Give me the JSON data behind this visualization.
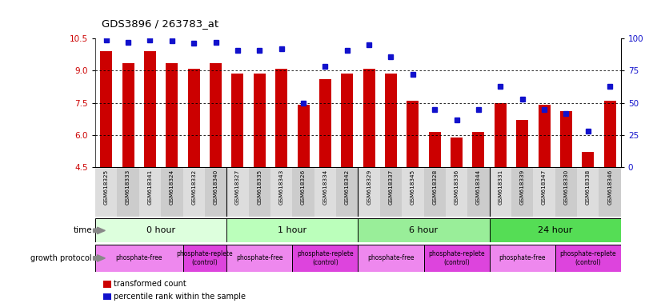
{
  "title": "GDS3896 / 263783_at",
  "samples": [
    "GSM618325",
    "GSM618333",
    "GSM618341",
    "GSM618324",
    "GSM618332",
    "GSM618340",
    "GSM618327",
    "GSM618335",
    "GSM618343",
    "GSM618326",
    "GSM618334",
    "GSM618342",
    "GSM618329",
    "GSM618337",
    "GSM618345",
    "GSM618328",
    "GSM618336",
    "GSM618344",
    "GSM618331",
    "GSM618339",
    "GSM618347",
    "GSM618330",
    "GSM618338",
    "GSM618346"
  ],
  "bar_values": [
    9.9,
    9.35,
    9.9,
    9.35,
    9.1,
    9.35,
    8.85,
    8.85,
    9.1,
    7.4,
    8.6,
    8.85,
    9.1,
    8.85,
    7.6,
    6.15,
    5.9,
    6.15,
    7.5,
    6.7,
    7.4,
    7.1,
    5.2,
    7.6
  ],
  "blue_values": [
    99,
    97,
    99,
    98,
    96,
    97,
    91,
    91,
    92,
    50,
    78,
    91,
    95,
    86,
    72,
    45,
    37,
    45,
    63,
    53,
    45,
    42,
    28,
    63
  ],
  "ylim_left": [
    4.5,
    10.5
  ],
  "ylim_right": [
    0,
    100
  ],
  "yticks_left": [
    4.5,
    6.0,
    7.5,
    9.0,
    10.5
  ],
  "yticks_right": [
    0,
    25,
    50,
    75,
    100
  ],
  "grid_vals": [
    6.0,
    7.5,
    9.0
  ],
  "bar_color": "#cc0000",
  "blue_color": "#1111cc",
  "bar_width": 0.55,
  "time_groups": [
    {
      "label": "0 hour",
      "start": 0,
      "end": 6,
      "color": "#ddffdd"
    },
    {
      "label": "1 hour",
      "start": 6,
      "end": 12,
      "color": "#bbffbb"
    },
    {
      "label": "6 hour",
      "start": 12,
      "end": 18,
      "color": "#99ee99"
    },
    {
      "label": "24 hour",
      "start": 18,
      "end": 24,
      "color": "#55dd55"
    }
  ],
  "protocol_groups": [
    {
      "label": "phosphate-free",
      "start": 0,
      "end": 4,
      "color": "#ee88ee"
    },
    {
      "label": "phosphate-replete\n(control)",
      "start": 4,
      "end": 6,
      "color": "#dd44dd"
    },
    {
      "label": "phosphate-free",
      "start": 6,
      "end": 9,
      "color": "#ee88ee"
    },
    {
      "label": "phosphate-replete\n(control)",
      "start": 9,
      "end": 12,
      "color": "#dd44dd"
    },
    {
      "label": "phosphate-free",
      "start": 12,
      "end": 15,
      "color": "#ee88ee"
    },
    {
      "label": "phosphate-replete\n(control)",
      "start": 15,
      "end": 18,
      "color": "#dd44dd"
    },
    {
      "label": "phosphate-free",
      "start": 18,
      "end": 21,
      "color": "#ee88ee"
    },
    {
      "label": "phosphate-replete\n(control)",
      "start": 21,
      "end": 24,
      "color": "#dd44dd"
    }
  ],
  "tick_label_color_left": "#cc0000",
  "tick_label_color_right": "#1111cc",
  "legend_bar": "transformed count",
  "legend_blue": "percentile rank within the sample"
}
